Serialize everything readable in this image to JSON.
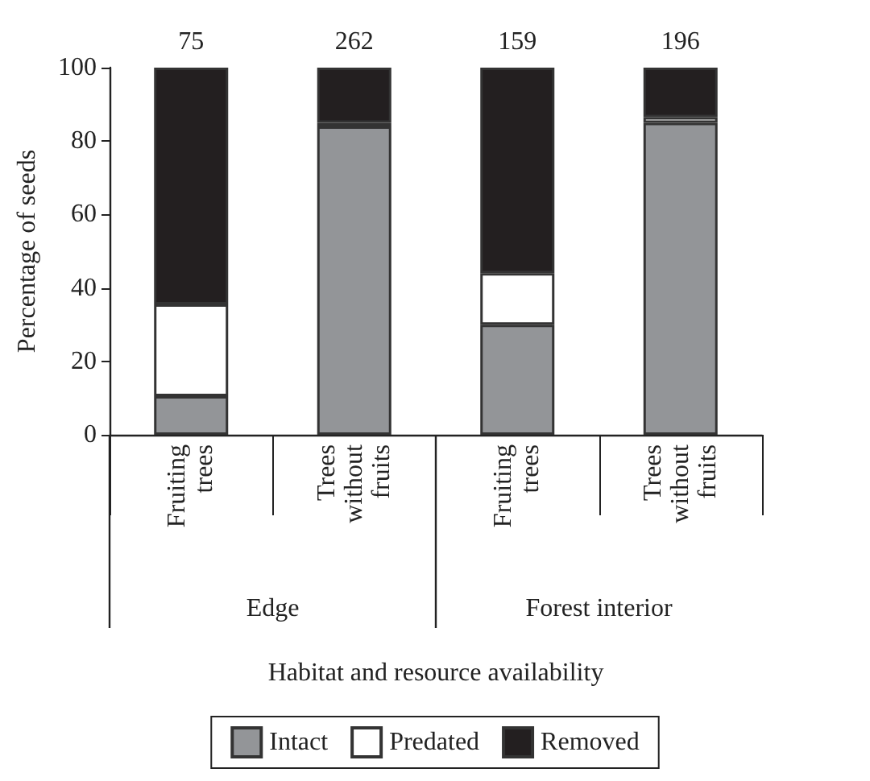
{
  "chart_data": {
    "type": "bar",
    "stacked": true,
    "ylabel": "Percentage of seeds",
    "categories": [
      "Fruiting trees",
      "Trees without fruits",
      "Fruiting trees",
      "Trees without fruits"
    ],
    "annotations": [
      "75",
      "262",
      "159",
      "196",
      "Edge",
      "Forest interior",
      "Habitat and resource availability"
    ],
    "series": [
      {
        "name": "Intact",
        "color": "#939598",
        "values": [
          10.5,
          84,
          30,
          85
        ]
      },
      {
        "name": "Predated",
        "color": "#ffffff",
        "values": [
          25,
          1,
          14,
          1.5
        ]
      },
      {
        "name": "Removed",
        "color": "#231f20",
        "values": [
          64.5,
          15,
          56,
          13.5
        ]
      }
    ],
    "ylim": [
      0,
      100
    ],
    "yticks": [
      0,
      20,
      40,
      60,
      80,
      100
    ],
    "grid": false,
    "legend": "bottom"
  }
}
